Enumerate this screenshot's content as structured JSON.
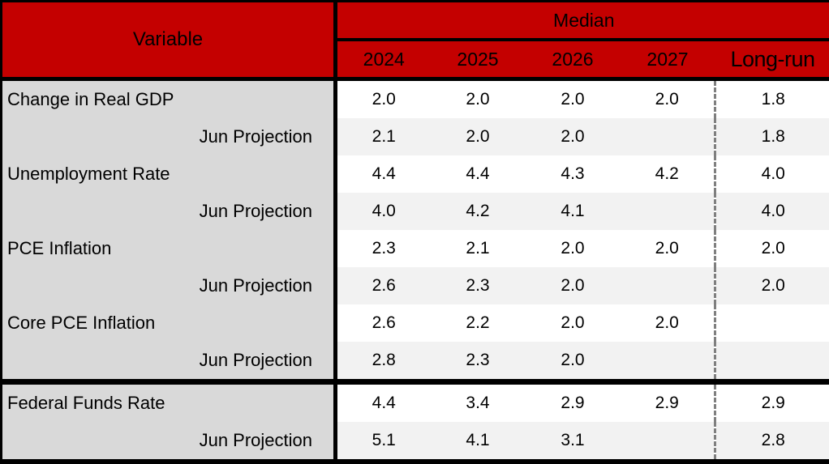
{
  "colors": {
    "header_red": "#c40000",
    "variable_column_gray": "#d9d9d9",
    "stripe_gray": "#f2f2f2",
    "row_white": "#ffffff",
    "border_black": "#000000",
    "dashed_divider_gray": "#7f7f7f"
  },
  "chart_data": {
    "type": "table",
    "header": {
      "variable_label": "Variable",
      "median_label": "Median",
      "year_columns": [
        "2024",
        "2025",
        "2026",
        "2027"
      ],
      "longrun_label": "Long-run"
    },
    "rows": [
      {
        "variable": "Change in Real GDP",
        "is_projection": false,
        "section_start": false,
        "values": [
          "2.0",
          "2.0",
          "2.0",
          "2.0",
          "1.8"
        ]
      },
      {
        "variable": "Jun Projection",
        "is_projection": true,
        "section_start": false,
        "values": [
          "2.1",
          "2.0",
          "2.0",
          "",
          "1.8"
        ]
      },
      {
        "variable": "Unemployment Rate",
        "is_projection": false,
        "section_start": false,
        "values": [
          "4.4",
          "4.4",
          "4.3",
          "4.2",
          "4.0"
        ]
      },
      {
        "variable": "Jun Projection",
        "is_projection": true,
        "section_start": false,
        "values": [
          "4.0",
          "4.2",
          "4.1",
          "",
          "4.0"
        ]
      },
      {
        "variable": "PCE Inflation",
        "is_projection": false,
        "section_start": false,
        "values": [
          "2.3",
          "2.1",
          "2.0",
          "2.0",
          "2.0"
        ]
      },
      {
        "variable": "Jun Projection",
        "is_projection": true,
        "section_start": false,
        "values": [
          "2.6",
          "2.3",
          "2.0",
          "",
          "2.0"
        ]
      },
      {
        "variable": "Core PCE Inflation",
        "is_projection": false,
        "section_start": false,
        "values": [
          "2.6",
          "2.2",
          "2.0",
          "2.0",
          ""
        ]
      },
      {
        "variable": "Jun Projection",
        "is_projection": true,
        "section_start": false,
        "values": [
          "2.8",
          "2.3",
          "2.0",
          "",
          ""
        ]
      },
      {
        "variable": "Federal Funds Rate",
        "is_projection": false,
        "section_start": true,
        "values": [
          "4.4",
          "3.4",
          "2.9",
          "2.9",
          "2.9"
        ]
      },
      {
        "variable": "Jun Projection",
        "is_projection": true,
        "section_start": false,
        "values": [
          "5.1",
          "4.1",
          "3.1",
          "",
          "2.8"
        ]
      }
    ]
  }
}
